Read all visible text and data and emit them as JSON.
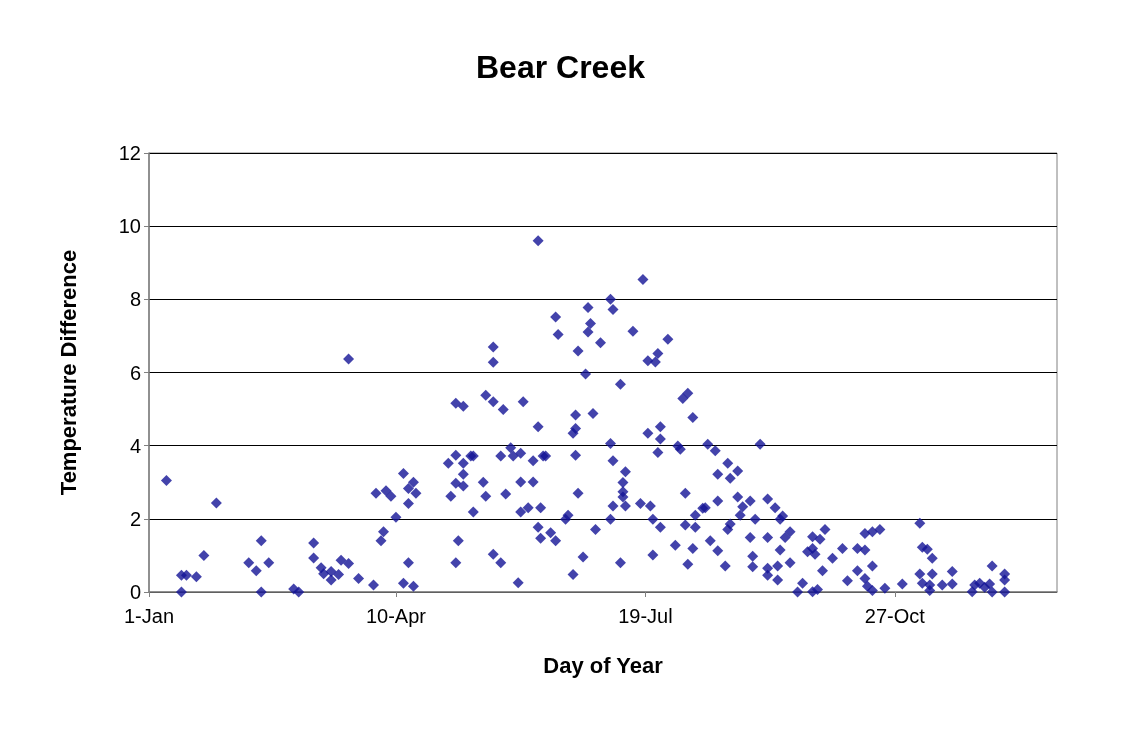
{
  "chart_data": {
    "type": "scatter",
    "title": "Bear Creek",
    "xlabel": "Day of Year",
    "ylabel": "Temperature Difference",
    "xlim": [
      "--01-01",
      "--12-31"
    ],
    "xticks": [
      {
        "value": "--01-01",
        "label": "1-Jan"
      },
      {
        "value": "--04-10",
        "label": "10-Apr"
      },
      {
        "value": "--07-19",
        "label": "19-Jul"
      },
      {
        "value": "--10-27",
        "label": "27-Oct"
      }
    ],
    "ylim": [
      0,
      12
    ],
    "yticks": [
      0,
      2,
      4,
      6,
      8,
      10,
      12
    ],
    "grid": "y",
    "marker": "diamond",
    "series": [
      {
        "color": "#141496",
        "x": [
          "--01-08",
          "--01-14",
          "--01-16",
          "--01-20",
          "--01-14",
          "--01-23",
          "--01-28",
          "--02-10",
          "--02-13",
          "--02-15",
          "--02-18",
          "--02-15",
          "--02-28",
          "--03-02",
          "--03-08",
          "--03-08",
          "--03-11",
          "--03-12",
          "--03-15",
          "--03-15",
          "--03-18",
          "--03-19",
          "--03-22",
          "--03-22",
          "--03-26",
          "--04-01",
          "--04-02",
          "--04-05",
          "--04-04",
          "--04-06",
          "--04-08",
          "--04-10",
          "--04-13",
          "--04-15",
          "--04-17",
          "--04-18",
          "--04-15",
          "--04-15",
          "--04-13",
          "--04-17",
          "--05-02",
          "--05-01",
          "--05-04",
          "--05-07",
          "--05-07",
          "--05-04",
          "--05-07",
          "--05-10",
          "--05-11",
          "--05-04",
          "--05-07",
          "--05-05",
          "--05-04",
          "--05-11",
          "--05-15",
          "--05-16",
          "--05-19",
          "--05-19",
          "--05-16",
          "--05-19",
          "--05-23",
          "--05-31",
          "--06-06",
          "--06-06",
          "--05-22",
          "--05-26",
          "--05-27",
          "--05-30",
          "--05-24",
          "--05-19",
          "--05-22",
          "--05-29",
          "--05-30",
          "--06-04",
          "--06-04",
          "--06-08",
          "--05-30",
          "--06-02",
          "--06-07",
          "--06-06",
          "--06-07",
          "--06-13",
          "--06-14",
          "--06-26",
          "--06-27",
          "--06-26",
          "--06-22",
          "--07-01",
          "--07-05",
          "--07-06",
          "--06-25",
          "--07-09",
          "--07-14",
          "--07-18",
          "--07-20",
          "--07-24",
          "--07-23",
          "--07-28",
          "--08-05",
          "--08-03",
          "--08-07",
          "--06-21",
          "--06-21",
          "--06-20",
          "--06-28",
          "--06-21",
          "--06-09",
          "--07-05",
          "--07-06",
          "--07-11",
          "--07-10",
          "--07-10",
          "--07-10",
          "--07-11",
          "--07-06",
          "--06-22",
          "--07-20",
          "--07-25",
          "--07-25",
          "--07-24",
          "--08-01",
          "--08-02",
          "--06-17",
          "--06-18",
          "--06-11",
          "--06-13",
          "--06-29",
          "--07-05",
          "--07-17",
          "--07-21",
          "--07-22",
          "--07-25",
          "--08-04",
          "--08-11",
          "--08-08",
          "--08-04",
          "--08-08",
          "--07-31",
          "--08-07",
          "--08-05",
          "--07-22",
          "--07-09",
          "--06-24",
          "--06-20",
          "--08-13",
          "--08-16",
          "--09-03",
          "--08-21",
          "--08-25",
          "--08-17",
          "--08-22",
          "--08-25",
          "--08-17",
          "--08-12",
          "--08-30",
          "--09-06",
          "--09-09",
          "--08-27",
          "--08-26",
          "--09-01",
          "--09-12",
          "--09-11",
          "--08-22",
          "--08-21",
          "--09-15",
          "--09-13",
          "--09-06",
          "--08-30",
          "--08-14",
          "--08-17",
          "--09-11",
          "--08-31",
          "--08-20",
          "--08-31",
          "--09-10",
          "--09-15",
          "--09-06",
          "--09-06",
          "--09-10",
          "--09-18",
          "--09-20",
          "--09-24",
          "--09-26",
          "--09-29",
          "--09-24",
          "--09-27",
          "--09-22",
          "--09-24",
          "--09-25",
          "--09-28",
          "--10-02",
          "--10-06",
          "--10-08",
          "--10-12",
          "--10-12",
          "--10-15",
          "--10-15",
          "--10-18",
          "--10-18",
          "--10-15",
          "--10-16",
          "--10-18",
          "--10-21",
          "--10-23",
          "--10-30",
          "--11-06",
          "--11-07",
          "--11-09",
          "--11-11",
          "--11-06",
          "--11-11",
          "--11-19",
          "--11-07",
          "--11-10",
          "--11-15",
          "--11-19",
          "--11-10",
          "--11-27",
          "--11-28",
          "--11-30",
          "--12-02",
          "--12-04",
          "--12-05",
          "--12-10",
          "--12-10",
          "--12-05",
          "--12-10"
        ],
        "values": [
          3.05,
          0,
          0.46,
          0.42,
          0.46,
          1.0,
          2.43,
          0.8,
          0.58,
          1.4,
          0.8,
          0,
          0.08,
          0,
          1.34,
          0.93,
          0.66,
          0.5,
          0.56,
          0.33,
          0.48,
          0.87,
          0.78,
          6.37,
          0.37,
          0.19,
          2.7,
          1.65,
          1.4,
          2.77,
          2.62,
          2.04,
          3.24,
          2.83,
          3.0,
          2.7,
          2.42,
          0.8,
          0.24,
          0.16,
          2.62,
          3.52,
          3.74,
          3.52,
          3.22,
          2.97,
          2.9,
          3.72,
          3.72,
          5.16,
          5.08,
          1.4,
          0.8,
          2.19,
          3.0,
          2.62,
          6.7,
          6.28,
          5.38,
          5.2,
          4.99,
          5.2,
          4.52,
          9.6,
          3.72,
          3.94,
          3.72,
          3.79,
          2.68,
          1.03,
          0.8,
          0.25,
          3.01,
          3.01,
          3.59,
          3.72,
          2.19,
          2.3,
          2.3,
          1.77,
          1.47,
          7.52,
          7.04,
          7.78,
          7.34,
          7.11,
          6.59,
          6.81,
          8.0,
          7.72,
          5.96,
          5.68,
          7.13,
          8.54,
          6.32,
          6.52,
          6.29,
          6.91,
          5.43,
          5.29,
          4.77,
          4.84,
          4.47,
          4.34,
          4.88,
          3.74,
          3.72,
          4.06,
          3.59,
          3.29,
          2.99,
          2.74,
          2.6,
          2.35,
          2.35,
          2.7,
          4.34,
          4.52,
          4.18,
          3.81,
          3.99,
          3.9,
          1.99,
          2.1,
          1.62,
          1.4,
          1.71,
          1.99,
          2.42,
          2.35,
          1.99,
          1.77,
          2.7,
          2.29,
          2.1,
          1.83,
          1.77,
          1.28,
          1.19,
          0.76,
          1.01,
          0.8,
          0.96,
          0.48,
          4.04,
          3.86,
          4.04,
          3.52,
          3.31,
          3.22,
          3.11,
          2.6,
          2.49,
          2.3,
          2.49,
          2.54,
          2.3,
          2.33,
          2.1,
          1.99,
          2.08,
          1.99,
          1.86,
          1.71,
          1.65,
          1.49,
          1.49,
          1.49,
          1.4,
          1.13,
          1.15,
          0.98,
          0.71,
          0.69,
          0.71,
          0.8,
          0.65,
          0.46,
          0.33,
          0,
          0.24,
          0.01,
          0.07,
          1.71,
          1.51,
          1.44,
          1.1,
          1.19,
          1.03,
          0.58,
          0.92,
          1.19,
          0.31,
          0.58,
          1.19,
          1.15,
          1.6,
          1.65,
          0.71,
          0.37,
          0.16,
          0.04,
          1.71,
          0.1,
          0.22,
          1.88,
          1.22,
          1.17,
          0.92,
          0.49,
          0.49,
          0.56,
          0.24,
          0.19,
          0.19,
          0.22,
          0.04,
          0.01,
          0.19,
          0.24,
          0.13,
          0.22,
          0.71,
          0.49,
          0.33,
          0,
          0
        ]
      }
    ]
  }
}
